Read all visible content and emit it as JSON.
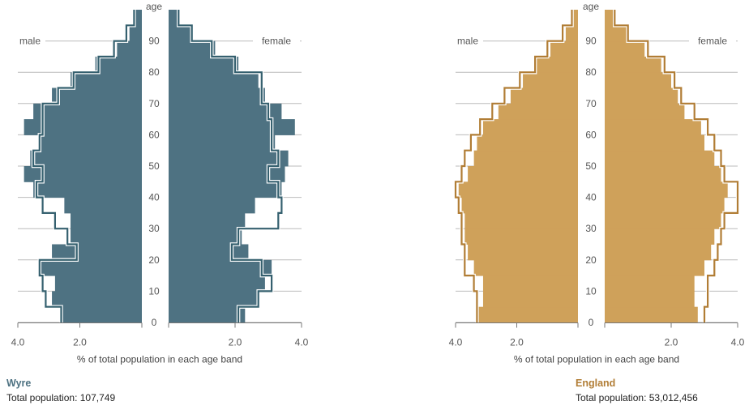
{
  "chart_data": [
    {
      "type": "population-pyramid",
      "area": "Wyre",
      "total_population_label": "Total population:",
      "total_population": "107,749",
      "color": "#4e7282",
      "outline_color": "#35606f",
      "male_label": "male",
      "female_label": "female",
      "age_label": "age",
      "xlabel": "% of total population in each age band",
      "xlim": [
        0,
        4.0
      ],
      "x_ticks": [
        "4.0",
        "2.0",
        "2.0",
        "4.0"
      ],
      "age_ticks": [
        "0",
        "10",
        "20",
        "30",
        "40",
        "50",
        "60",
        "70",
        "80",
        "90"
      ],
      "age_bands": [
        "0-4",
        "5-9",
        "10-14",
        "15-19",
        "20-24",
        "25-29",
        "30-34",
        "35-39",
        "40-44",
        "45-49",
        "50-54",
        "55-59",
        "60-64",
        "65-69",
        "70-74",
        "75-79",
        "80-84",
        "85-89",
        "90-94",
        "95+"
      ],
      "male_fill": [
        2.6,
        2.9,
        2.8,
        3.3,
        2.9,
        2.3,
        2.3,
        2.5,
        3.5,
        3.8,
        3.6,
        3.3,
        3.8,
        3.5,
        2.9,
        2.3,
        1.5,
        0.8,
        0.4,
        0.2
      ],
      "female_fill": [
        2.3,
        2.7,
        2.9,
        3.1,
        2.4,
        2.2,
        2.3,
        2.6,
        3.4,
        3.5,
        3.6,
        3.2,
        3.8,
        3.4,
        2.9,
        2.7,
        2.1,
        1.4,
        0.7,
        0.3
      ],
      "male_outline": [
        2.6,
        3.1,
        3.2,
        3.3,
        2.1,
        2.4,
        2.8,
        3.2,
        3.4,
        3.2,
        3.5,
        3.3,
        3.2,
        3.2,
        2.7,
        2.2,
        1.4,
        0.9,
        0.5,
        0.25
      ],
      "female_outline": [
        2.1,
        2.7,
        3.1,
        2.8,
        1.9,
        2.1,
        3.3,
        3.4,
        3.3,
        3.0,
        3.3,
        3.1,
        3.1,
        3.0,
        2.8,
        2.8,
        2.0,
        1.3,
        0.7,
        0.3
      ]
    },
    {
      "type": "population-pyramid",
      "area": "England",
      "total_population_label": "Total population:",
      "total_population": "53,012,456",
      "color": "#cfa15a",
      "outline_color": "#b17d35",
      "male_label": "male",
      "female_label": "female",
      "age_label": "age",
      "xlabel": "% of total population in each age band",
      "xlim": [
        0,
        4.0
      ],
      "x_ticks": [
        "4.0",
        "2.0",
        "2.0",
        "4.0"
      ],
      "age_ticks": [
        "0",
        "10",
        "20",
        "30",
        "40",
        "50",
        "60",
        "70",
        "80",
        "90"
      ],
      "age_bands": [
        "0-4",
        "5-9",
        "10-14",
        "15-19",
        "20-24",
        "25-29",
        "30-34",
        "35-39",
        "40-44",
        "45-49",
        "50-54",
        "55-59",
        "60-64",
        "65-69",
        "70-74",
        "75-79",
        "80-84",
        "85-89",
        "90-94",
        "95+"
      ],
      "male_fill": [
        3.3,
        3.1,
        3.1,
        3.4,
        3.6,
        3.7,
        3.7,
        3.8,
        3.9,
        3.6,
        3.4,
        3.3,
        3.1,
        2.6,
        2.2,
        1.8,
        1.4,
        0.9,
        0.4,
        0.2
      ],
      "female_fill": [
        2.8,
        2.7,
        2.7,
        3.0,
        3.2,
        3.3,
        3.5,
        3.6,
        3.7,
        3.5,
        3.3,
        3.0,
        2.9,
        2.4,
        2.2,
        2.0,
        1.7,
        1.2,
        0.7,
        0.3
      ],
      "male_outline": [
        3.3,
        3.3,
        3.4,
        3.7,
        3.7,
        3.8,
        3.8,
        3.9,
        4.0,
        3.8,
        3.7,
        3.5,
        3.2,
        2.8,
        2.4,
        1.9,
        1.4,
        1.0,
        0.5,
        0.2
      ],
      "female_outline": [
        3.0,
        3.1,
        3.1,
        3.3,
        3.4,
        3.5,
        3.6,
        4.0,
        4.0,
        3.6,
        3.5,
        3.3,
        3.1,
        2.7,
        2.3,
        2.1,
        1.8,
        1.3,
        0.7,
        0.3
      ]
    }
  ]
}
